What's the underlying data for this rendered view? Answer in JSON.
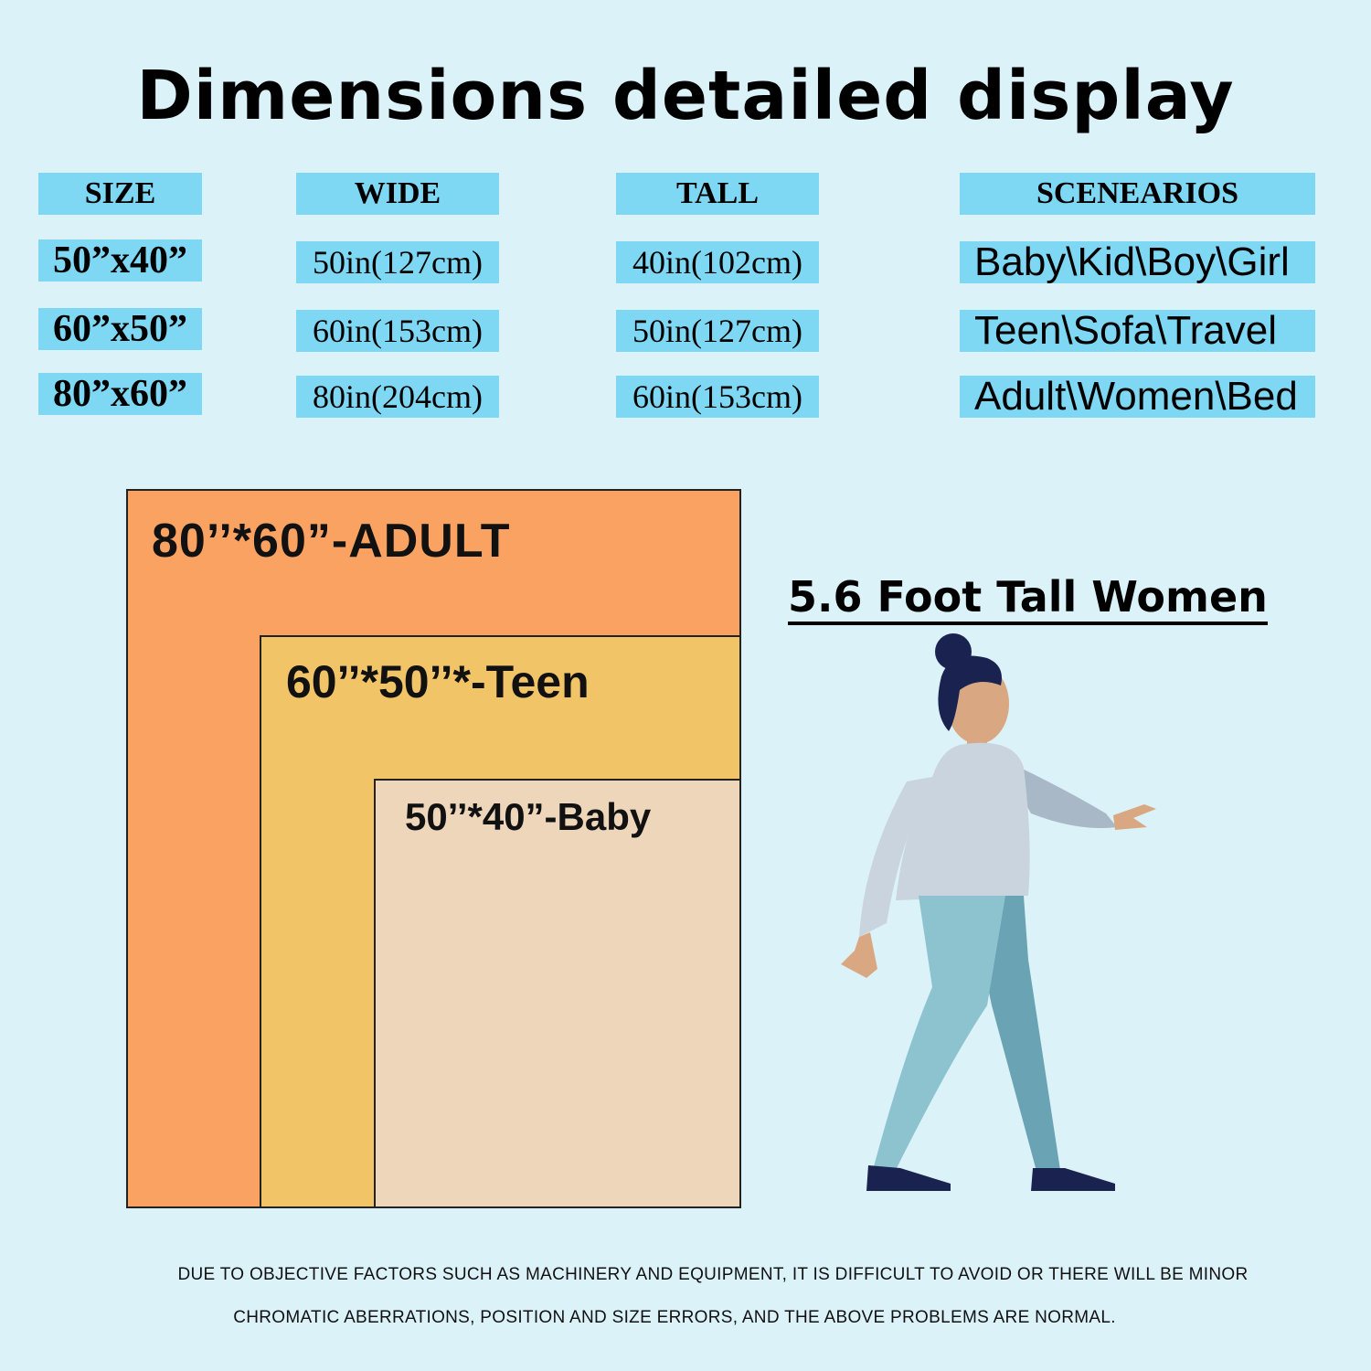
{
  "title": "Dimensions detailed display",
  "table": {
    "headers": [
      "SIZE",
      "WIDE",
      "TALL",
      "SCENEARIOS"
    ],
    "rows": [
      {
        "size": "50”x40”",
        "wide": "50in(127cm)",
        "tall": "40in(102cm)",
        "scenarios": "Baby\\Kid\\Boy\\Girl"
      },
      {
        "size": "60”x50”",
        "wide": "60in(153cm)",
        "tall": "50in(127cm)",
        "scenarios": "Teen\\Sofa\\Travel"
      },
      {
        "size": "80”x60”",
        "wide": "80in(204cm)",
        "tall": "60in(153cm)",
        "scenarios": "Adult\\Women\\Bed"
      }
    ]
  },
  "diagram": {
    "adult_label": "80’’*60”-ADULT",
    "teen_label": "60’’*50’’*-Teen",
    "baby_label": "50’’*40”-Baby",
    "colors": {
      "adult": "#f9a262",
      "teen": "#f2c468",
      "baby": "#eed6bb"
    }
  },
  "figure": {
    "caption": "5.6 Foot Tall Women",
    "icon": "walking-woman-illustration"
  },
  "disclaimer": {
    "line1": "DUE TO OBJECTIVE FACTORS SUCH AS MACHINERY AND EQUIPMENT, IT IS DIFFICULT TO AVOID OR THERE WILL BE MINOR",
    "line2": "CHROMATIC ABERRATIONS, POSITION AND SIZE ERRORS, AND THE ABOVE PROBLEMS ARE NORMAL."
  },
  "colors": {
    "background": "#dcf2f9",
    "cell": "#7fd8f3"
  }
}
